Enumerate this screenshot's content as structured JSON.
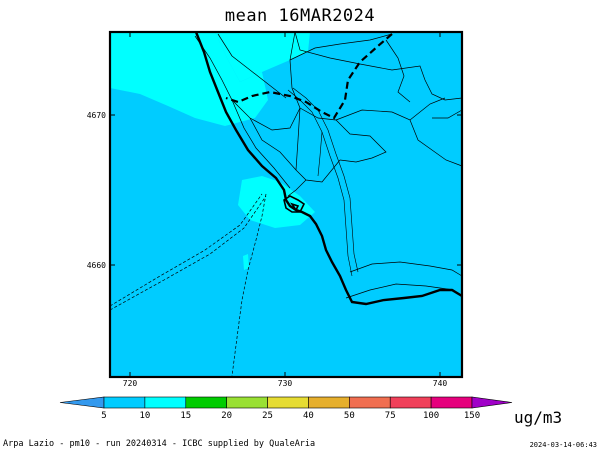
{
  "title": "mean 16MAR2024",
  "axes": {
    "x_ticks": [
      "720",
      "730",
      "740"
    ],
    "y_ticks": [
      "4670",
      "4660"
    ]
  },
  "colorbar": {
    "labels": [
      "5",
      "10",
      "15",
      "20",
      "25",
      "40",
      "50",
      "75",
      "100",
      "150"
    ],
    "colors": [
      "#3399ee",
      "#00ccff",
      "#00ffff",
      "#00cc00",
      "#99e033",
      "#e6dc33",
      "#e6af2d",
      "#f06e50",
      "#f0405a",
      "#e6007d",
      "#a000c8",
      "#a000c8"
    ],
    "unit": "ug/m3"
  },
  "map": {
    "background_color": "#00ccff",
    "highlight_color": "#00ffff",
    "border_color": "#000000"
  },
  "footer": {
    "left": "Arpa Lazio - pm10 - run 20240314 - ICBC supplied by QualeAria",
    "right": "2024-03-14-06:43"
  }
}
